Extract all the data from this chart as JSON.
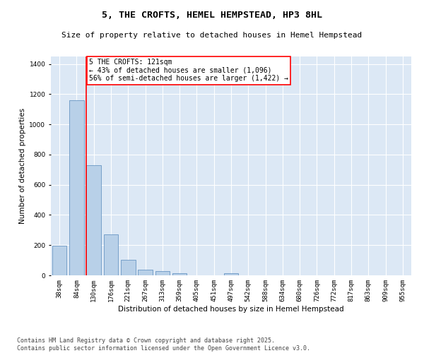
{
  "title": "5, THE CROFTS, HEMEL HEMPSTEAD, HP3 8HL",
  "subtitle": "Size of property relative to detached houses in Hemel Hempstead",
  "xlabel": "Distribution of detached houses by size in Hemel Hempstead",
  "ylabel": "Number of detached properties",
  "bar_color": "#b8d0e8",
  "bar_edge_color": "#5588bb",
  "background_color": "#dce8f5",
  "grid_color": "#ffffff",
  "categories": [
    "38sqm",
    "84sqm",
    "130sqm",
    "176sqm",
    "221sqm",
    "267sqm",
    "313sqm",
    "359sqm",
    "405sqm",
    "451sqm",
    "497sqm",
    "542sqm",
    "588sqm",
    "634sqm",
    "680sqm",
    "726sqm",
    "772sqm",
    "817sqm",
    "863sqm",
    "909sqm",
    "955sqm"
  ],
  "values": [
    196,
    1160,
    730,
    270,
    105,
    38,
    28,
    12,
    0,
    0,
    15,
    0,
    0,
    0,
    0,
    0,
    0,
    0,
    0,
    0,
    0
  ],
  "ylim": [
    0,
    1450
  ],
  "yticks": [
    0,
    200,
    400,
    600,
    800,
    1000,
    1200,
    1400
  ],
  "property_label": "5 THE CROFTS: 121sqm",
  "annotation_line1": "← 43% of detached houses are smaller (1,096)",
  "annotation_line2": "56% of semi-detached houses are larger (1,422) →",
  "vline_bin_index": 2,
  "footer": "Contains HM Land Registry data © Crown copyright and database right 2025.\nContains public sector information licensed under the Open Government Licence v3.0.",
  "title_fontsize": 9.5,
  "subtitle_fontsize": 8,
  "axis_label_fontsize": 7.5,
  "tick_fontsize": 6.5,
  "annotation_fontsize": 7,
  "footer_fontsize": 6
}
